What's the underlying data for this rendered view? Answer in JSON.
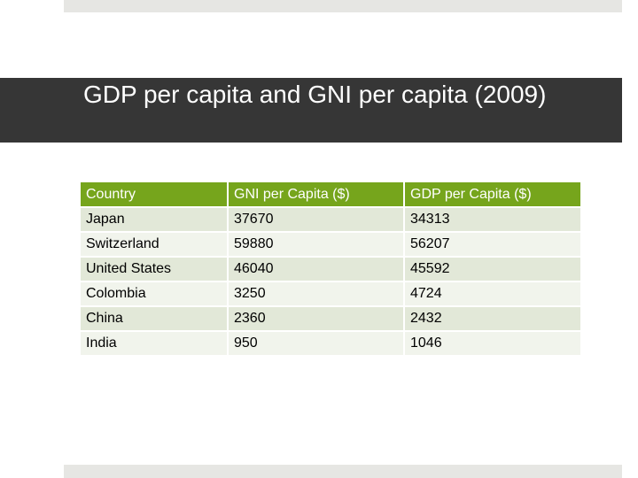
{
  "slide": {
    "title": "GDP per capita and GNI per capita (2009)"
  },
  "table": {
    "headers": [
      "Country",
      "GNI per Capita ($)",
      "GDP per Capita ($)"
    ],
    "rows": [
      [
        "Japan",
        "37670",
        "34313"
      ],
      [
        "Switzerland",
        "59880",
        "56207"
      ],
      [
        "United States",
        "46040",
        "45592"
      ],
      [
        "Colombia",
        "3250",
        "4724"
      ],
      [
        "China",
        "2360",
        "2432"
      ],
      [
        "India",
        "950",
        "1046"
      ]
    ]
  },
  "colors": {
    "header_green": "#76a51c",
    "title_band": "#363636",
    "row_shade_dark": "#e2e8d8",
    "row_shade_light": "#f1f4ec",
    "accent_bars": "#e6e6e3"
  }
}
